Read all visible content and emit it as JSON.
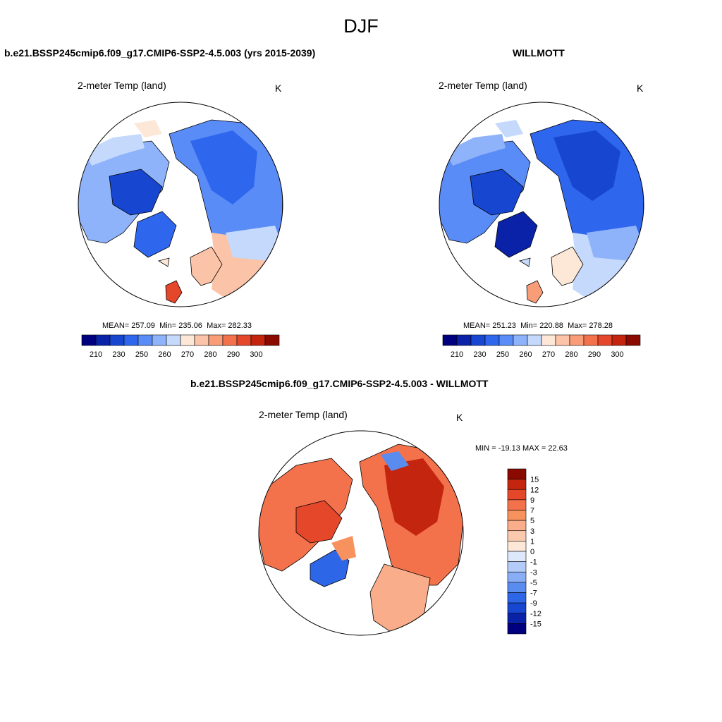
{
  "figure": {
    "title": "DJF",
    "diff_title": "b.e21.BSSP245cmip6.f09_g17.CMIP6-SSP2-4.5.003 - WILLMOTT"
  },
  "panels": [
    {
      "case_title": "b.e21.BSSP245cmip6.f09_g17.CMIP6-SSP2-4.5.003 (yrs 2015-2039)",
      "variable": "2-meter Temp (land)",
      "units": "K",
      "stats": {
        "mean_label": "MEAN=",
        "mean": "257.09",
        "min_label": "Min=",
        "min": "235.06",
        "max_label": "Max=",
        "max": "282.33"
      }
    },
    {
      "case_title": "WILLMOTT",
      "variable": "2-meter Temp (land)",
      "units": "K",
      "stats": {
        "mean_label": "MEAN=",
        "mean": "251.23",
        "min_label": "Min=",
        "min": "220.88",
        "max_label": "Max=",
        "max": "278.28"
      }
    },
    {
      "variable": "2-meter Temp (land)",
      "units": "K",
      "stats_text": "MIN = -19.13 MAX =  22.63"
    }
  ],
  "abs_colorbar": {
    "colors": [
      "#00007f",
      "#0a22a8",
      "#1746d0",
      "#2e66ee",
      "#5a8cf7",
      "#8fb3fa",
      "#c4d9fb",
      "#fde8d8",
      "#fbc3a7",
      "#f89d78",
      "#f3724c",
      "#e5472b",
      "#c4250f",
      "#8b0a00"
    ],
    "tick_labels": [
      "210",
      "230",
      "250",
      "260",
      "270",
      "280",
      "290",
      "300"
    ]
  },
  "diff_colorbar": {
    "colors": [
      "#8b0a00",
      "#c4250f",
      "#e5472b",
      "#f3724c",
      "#f7925f",
      "#f9ad8a",
      "#fbcaae",
      "#fde8d8",
      "#dde8fb",
      "#b3cbf9",
      "#8aaef6",
      "#5a8cf0",
      "#2e66e8",
      "#1746d0",
      "#0a22a8",
      "#00007f"
    ],
    "tick_labels": [
      "15",
      "12",
      "9",
      "7",
      "5",
      "3",
      "1",
      "0",
      "-1",
      "-3",
      "-5",
      "-7",
      "-9",
      "-12",
      "-15"
    ]
  },
  "map_colors": {
    "land_outline": "#000000",
    "ocean": "#ffffff"
  }
}
